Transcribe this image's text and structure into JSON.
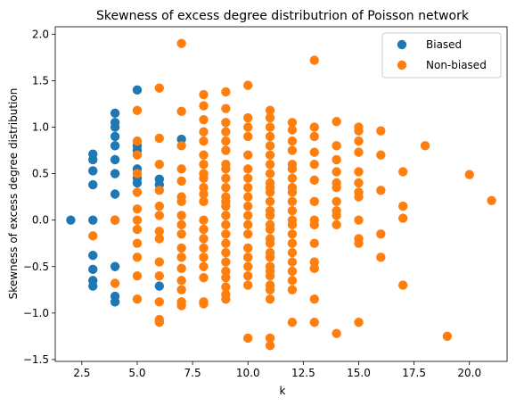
{
  "chart_data": {
    "type": "scatter",
    "title": "Skewness of excess degree distributrion of Poisson network",
    "xlabel": "k",
    "ylabel": "Skewness of excess degree distribution",
    "xlim": [
      1.3,
      21.7
    ],
    "ylim": [
      -1.52,
      2.08
    ],
    "xticks": [
      2.5,
      5.0,
      7.5,
      10.0,
      12.5,
      15.0,
      17.5,
      20.0
    ],
    "xtick_labels": [
      "2.5",
      "5.0",
      "7.5",
      "10.0",
      "12.5",
      "15.0",
      "17.5",
      "20.0"
    ],
    "yticks": [
      -1.5,
      -1.0,
      -0.5,
      0.0,
      0.5,
      1.0,
      1.5,
      2.0
    ],
    "ytick_labels": [
      "−1.5",
      "−1.0",
      "−0.5",
      "0.0",
      "0.5",
      "1.0",
      "1.5",
      "2.0"
    ],
    "grid": false,
    "legend": "top-right",
    "series": [
      {
        "name": "Biased",
        "color": "#1f77b4",
        "points": [
          [
            2,
            0.0
          ],
          [
            3,
            0.71
          ],
          [
            3,
            0.65
          ],
          [
            3,
            0.53
          ],
          [
            3,
            0.38
          ],
          [
            3,
            0.0
          ],
          [
            3,
            -0.38
          ],
          [
            3,
            -0.53
          ],
          [
            3,
            -0.65
          ],
          [
            3,
            -0.71
          ],
          [
            4,
            1.15
          ],
          [
            4,
            1.05
          ],
          [
            4,
            1.0
          ],
          [
            4,
            0.9
          ],
          [
            4,
            0.8
          ],
          [
            4,
            0.65
          ],
          [
            4,
            0.5
          ],
          [
            4,
            0.28
          ],
          [
            4,
            0.0
          ],
          [
            4,
            -0.5
          ],
          [
            4,
            -0.82
          ],
          [
            4,
            -0.88
          ],
          [
            5,
            1.4
          ],
          [
            5,
            0.8
          ],
          [
            5,
            0.75
          ],
          [
            5,
            0.55
          ],
          [
            5,
            0.45
          ],
          [
            5,
            0.4
          ],
          [
            6,
            0.44
          ],
          [
            6,
            0.38
          ],
          [
            6,
            -0.71
          ],
          [
            7,
            0.87
          ]
        ]
      },
      {
        "name": "Non-biased",
        "color": "#ff7f0e",
        "points": [
          [
            3,
            -0.17
          ],
          [
            4,
            0.0
          ],
          [
            4,
            -0.68
          ],
          [
            5,
            1.18
          ],
          [
            5,
            0.85
          ],
          [
            5,
            0.7
          ],
          [
            5,
            0.5
          ],
          [
            5,
            0.3
          ],
          [
            5,
            0.12
          ],
          [
            5,
            0.0
          ],
          [
            5,
            -0.1
          ],
          [
            5,
            -0.25
          ],
          [
            5,
            -0.4
          ],
          [
            5,
            -0.6
          ],
          [
            5,
            -0.85
          ],
          [
            6,
            1.42
          ],
          [
            6,
            0.88
          ],
          [
            6,
            0.6
          ],
          [
            6,
            0.32
          ],
          [
            6,
            0.15
          ],
          [
            6,
            0.05
          ],
          [
            6,
            -0.12
          ],
          [
            6,
            -0.2
          ],
          [
            6,
            -0.45
          ],
          [
            6,
            -0.6
          ],
          [
            6,
            -0.88
          ],
          [
            6,
            -1.07
          ],
          [
            6,
            -1.1
          ],
          [
            7,
            1.9
          ],
          [
            7,
            1.17
          ],
          [
            7,
            0.8
          ],
          [
            7,
            0.55
          ],
          [
            7,
            0.42
          ],
          [
            7,
            0.25
          ],
          [
            7,
            0.2
          ],
          [
            7,
            0.05
          ],
          [
            7,
            -0.05
          ],
          [
            7,
            -0.15
          ],
          [
            7,
            -0.3
          ],
          [
            7,
            -0.4
          ],
          [
            7,
            -0.52
          ],
          [
            7,
            -0.65
          ],
          [
            7,
            -0.75
          ],
          [
            7,
            -0.88
          ],
          [
            7,
            -0.92
          ],
          [
            8,
            1.35
          ],
          [
            8,
            1.23
          ],
          [
            8,
            1.08
          ],
          [
            8,
            0.95
          ],
          [
            8,
            0.85
          ],
          [
            8,
            0.7
          ],
          [
            8,
            0.6
          ],
          [
            8,
            0.5
          ],
          [
            8,
            0.45
          ],
          [
            8,
            0.35
          ],
          [
            8,
            0.28
          ],
          [
            8,
            0.2
          ],
          [
            8,
            0.0
          ],
          [
            8,
            -0.1
          ],
          [
            8,
            -0.2
          ],
          [
            8,
            -0.3
          ],
          [
            8,
            -0.4
          ],
          [
            8,
            -0.5
          ],
          [
            8,
            -0.62
          ],
          [
            8,
            -0.88
          ],
          [
            8,
            -0.9
          ],
          [
            9,
            1.38
          ],
          [
            9,
            1.2
          ],
          [
            9,
            1.05
          ],
          [
            9,
            0.95
          ],
          [
            9,
            0.85
          ],
          [
            9,
            0.75
          ],
          [
            9,
            0.6
          ],
          [
            9,
            0.55
          ],
          [
            9,
            0.45
          ],
          [
            9,
            0.35
          ],
          [
            9,
            0.25
          ],
          [
            9,
            0.2
          ],
          [
            9,
            0.15
          ],
          [
            9,
            0.05
          ],
          [
            9,
            -0.05
          ],
          [
            9,
            -0.15
          ],
          [
            9,
            -0.25
          ],
          [
            9,
            -0.35
          ],
          [
            9,
            -0.45
          ],
          [
            9,
            -0.55
          ],
          [
            9,
            -0.62
          ],
          [
            9,
            -0.72
          ],
          [
            9,
            -0.8
          ],
          [
            9,
            -0.85
          ],
          [
            10,
            1.45
          ],
          [
            10,
            1.1
          ],
          [
            10,
            1.0
          ],
          [
            10,
            0.9
          ],
          [
            10,
            0.7
          ],
          [
            10,
            0.55
          ],
          [
            10,
            0.45
          ],
          [
            10,
            0.35
          ],
          [
            10,
            0.25
          ],
          [
            10,
            0.15
          ],
          [
            10,
            0.05
          ],
          [
            10,
            -0.05
          ],
          [
            10,
            -0.15
          ],
          [
            10,
            -0.3
          ],
          [
            10,
            -0.4
          ],
          [
            10,
            -0.5
          ],
          [
            10,
            -0.6
          ],
          [
            10,
            -0.7
          ],
          [
            10,
            -1.27
          ],
          [
            11,
            1.18
          ],
          [
            11,
            1.1
          ],
          [
            11,
            1.0
          ],
          [
            11,
            0.9
          ],
          [
            11,
            0.8
          ],
          [
            11,
            0.7
          ],
          [
            11,
            0.6
          ],
          [
            11,
            0.5
          ],
          [
            11,
            0.4
          ],
          [
            11,
            0.35
          ],
          [
            11,
            0.3
          ],
          [
            11,
            0.2
          ],
          [
            11,
            0.1
          ],
          [
            11,
            0.05
          ],
          [
            11,
            -0.05
          ],
          [
            11,
            -0.1
          ],
          [
            11,
            -0.2
          ],
          [
            11,
            -0.25
          ],
          [
            11,
            -0.35
          ],
          [
            11,
            -0.4
          ],
          [
            11,
            -0.5
          ],
          [
            11,
            -0.55
          ],
          [
            11,
            -0.6
          ],
          [
            11,
            -0.7
          ],
          [
            11,
            -0.75
          ],
          [
            11,
            -0.85
          ],
          [
            11,
            -1.27
          ],
          [
            11,
            -1.35
          ],
          [
            12,
            1.05
          ],
          [
            12,
            0.97
          ],
          [
            12,
            0.85
          ],
          [
            12,
            0.75
          ],
          [
            12,
            0.6
          ],
          [
            12,
            0.55
          ],
          [
            12,
            0.45
          ],
          [
            12,
            0.35
          ],
          [
            12,
            0.3
          ],
          [
            12,
            0.2
          ],
          [
            12,
            0.1
          ],
          [
            12,
            0.0
          ],
          [
            12,
            -0.05
          ],
          [
            12,
            -0.15
          ],
          [
            12,
            -0.25
          ],
          [
            12,
            -0.35
          ],
          [
            12,
            -0.45
          ],
          [
            12,
            -0.55
          ],
          [
            12,
            -0.65
          ],
          [
            12,
            -0.75
          ],
          [
            12,
            -1.1
          ],
          [
            13,
            1.72
          ],
          [
            13,
            1.0
          ],
          [
            13,
            0.9
          ],
          [
            13,
            0.73
          ],
          [
            13,
            0.6
          ],
          [
            13,
            0.43
          ],
          [
            13,
            0.2
          ],
          [
            13,
            0.0
          ],
          [
            13,
            -0.05
          ],
          [
            13,
            -0.25
          ],
          [
            13,
            -0.45
          ],
          [
            13,
            -0.52
          ],
          [
            13,
            -0.85
          ],
          [
            13,
            -1.1
          ],
          [
            14,
            1.06
          ],
          [
            14,
            0.8
          ],
          [
            14,
            0.65
          ],
          [
            14,
            0.52
          ],
          [
            14,
            0.4
          ],
          [
            14,
            0.35
          ],
          [
            14,
            0.2
          ],
          [
            14,
            0.1
          ],
          [
            14,
            0.05
          ],
          [
            14,
            -0.05
          ],
          [
            14,
            -1.22
          ],
          [
            15,
            1.0
          ],
          [
            15,
            0.96
          ],
          [
            15,
            0.85
          ],
          [
            15,
            0.73
          ],
          [
            15,
            0.52
          ],
          [
            15,
            0.4
          ],
          [
            15,
            0.3
          ],
          [
            15,
            0.25
          ],
          [
            15,
            0.0
          ],
          [
            15,
            -0.2
          ],
          [
            15,
            -0.25
          ],
          [
            15,
            -1.1
          ],
          [
            16,
            0.96
          ],
          [
            16,
            0.7
          ],
          [
            16,
            0.32
          ],
          [
            16,
            -0.15
          ],
          [
            16,
            -0.4
          ],
          [
            17,
            0.52
          ],
          [
            17,
            0.15
          ],
          [
            17,
            0.02
          ],
          [
            17,
            -0.7
          ],
          [
            18,
            0.8
          ],
          [
            19,
            -1.25
          ],
          [
            20,
            0.49
          ],
          [
            21,
            0.21
          ]
        ]
      }
    ]
  }
}
